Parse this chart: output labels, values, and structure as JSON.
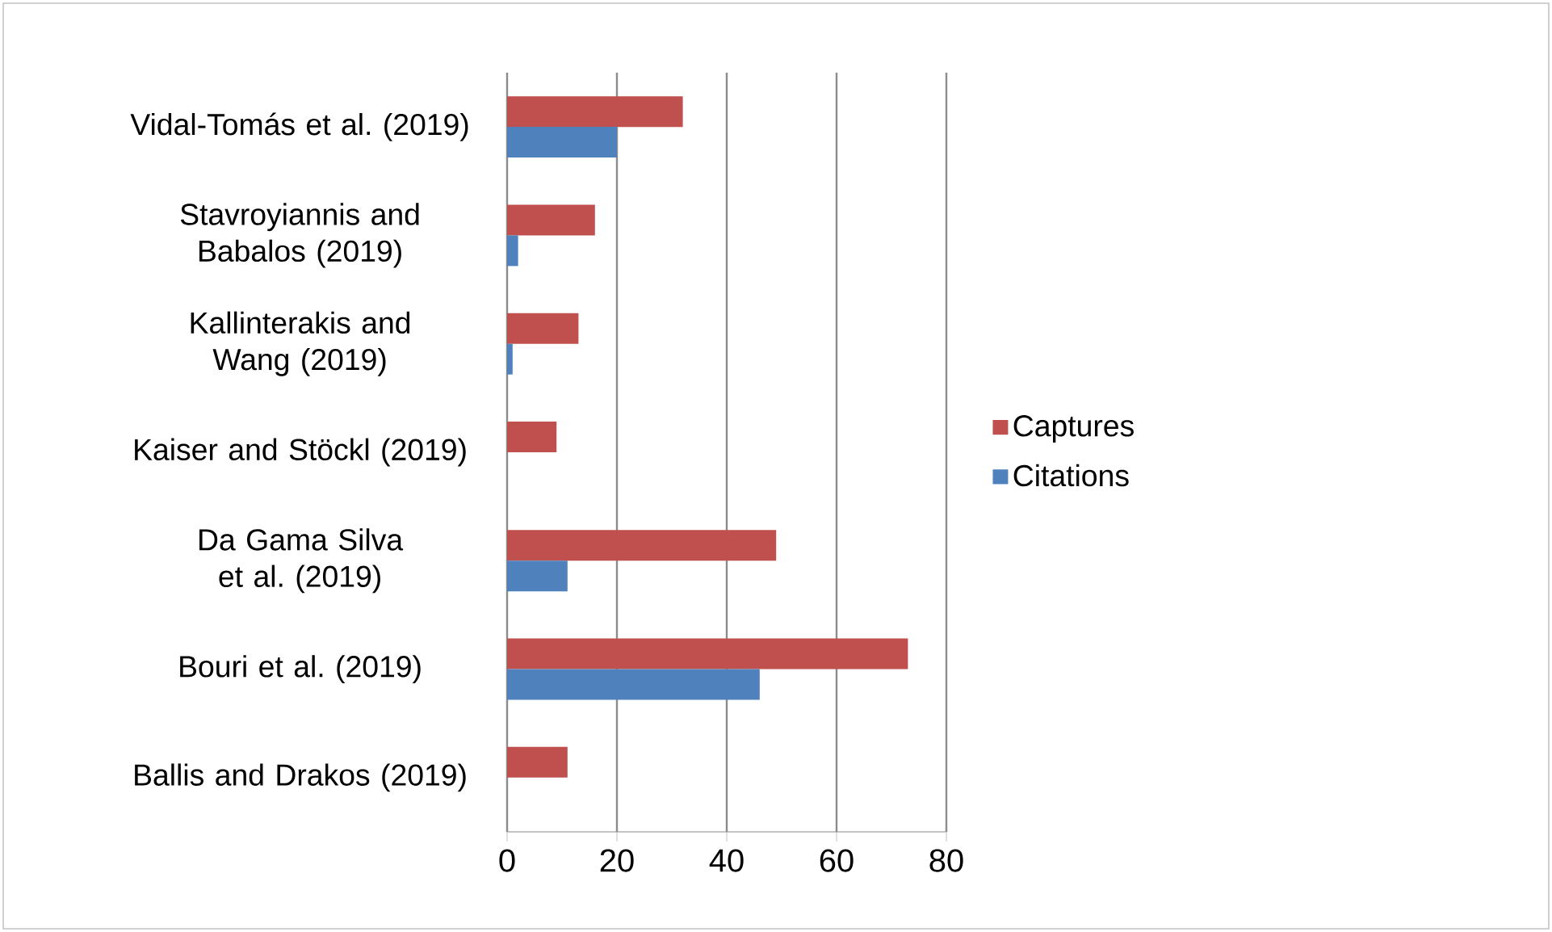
{
  "chart_data": {
    "type": "bar",
    "orientation": "horizontal",
    "categories": [
      "Vidal-Tomás et al. (2019)",
      "Stavroyiannis and Babalos (2019)",
      "Kallinterakis and Wang (2019)",
      "Kaiser and Stöckl (2019)",
      "Da Gama Silva et al. (2019)",
      "Bouri et al. (2019)",
      "Ballis and Drakos (2019)"
    ],
    "series": [
      {
        "name": "Captures",
        "color": "#c0504d",
        "values": [
          32,
          16,
          13,
          9,
          49,
          73,
          11
        ]
      },
      {
        "name": "Citations",
        "color": "#4f81bd",
        "values": [
          20,
          2,
          1,
          0,
          11,
          46,
          0
        ]
      }
    ],
    "xlim": [
      0,
      80
    ],
    "xticks": [
      0,
      20,
      40,
      60,
      80
    ],
    "grid": "x",
    "legend": "right"
  }
}
